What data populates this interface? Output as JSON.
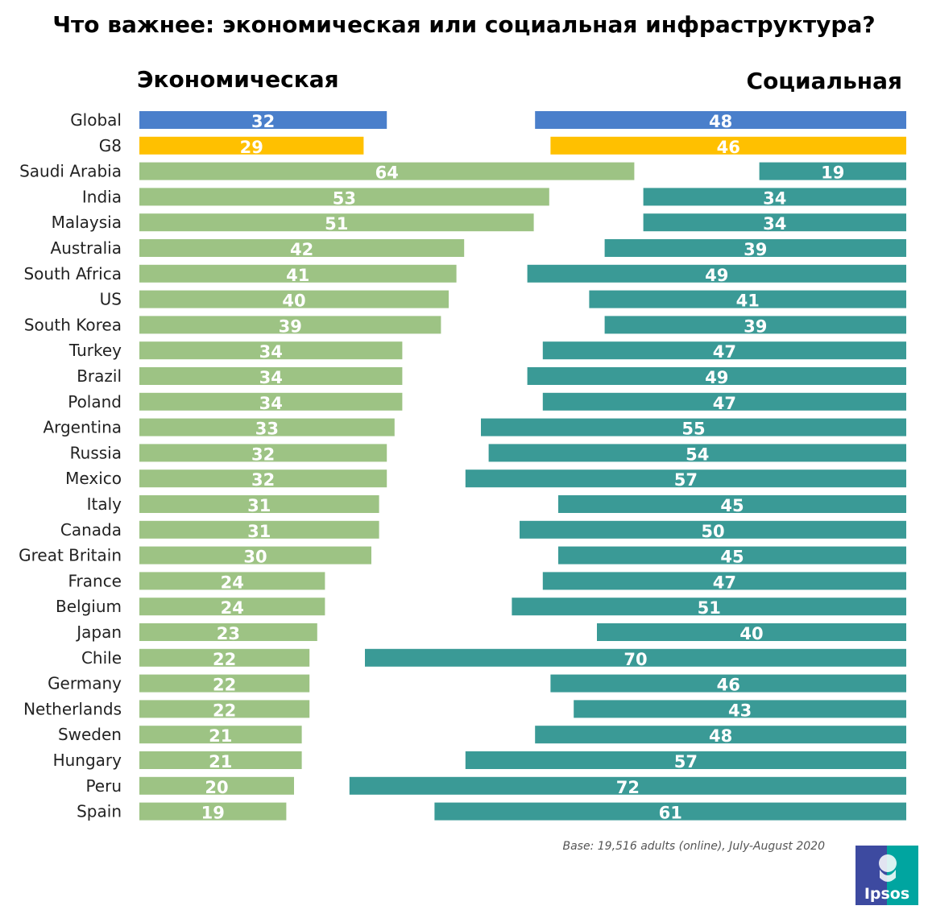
{
  "chart_data": {
    "type": "bar",
    "title": "Что важнее: экономическая или социальная инфраструктура?",
    "left_header": "Экономическая",
    "right_header": "Социальная",
    "categories": [
      "Global",
      "G8",
      "Saudi Arabia",
      "India",
      "Malaysia",
      "Australia",
      "South Africa",
      "US",
      "South Korea",
      "Turkey",
      "Brazil",
      "Poland",
      "Argentina",
      "Russia",
      "Mexico",
      "Italy",
      "Canada",
      "Great Britain",
      "France",
      "Belgium",
      "Japan",
      "Chile",
      "Germany",
      "Netherlands",
      "Sweden",
      "Hungary",
      "Peru",
      "Spain"
    ],
    "series": [
      {
        "name": "Экономическая",
        "values": [
          32,
          29,
          64,
          53,
          51,
          42,
          41,
          40,
          39,
          34,
          34,
          34,
          33,
          32,
          32,
          31,
          31,
          30,
          24,
          24,
          23,
          22,
          22,
          22,
          21,
          21,
          20,
          19
        ]
      },
      {
        "name": "Социальная",
        "values": [
          48,
          46,
          19,
          34,
          34,
          39,
          49,
          41,
          39,
          47,
          49,
          47,
          55,
          54,
          57,
          45,
          50,
          45,
          47,
          51,
          40,
          70,
          46,
          43,
          48,
          57,
          72,
          61
        ]
      }
    ],
    "colors": {
      "global": "#4a7fcb",
      "g8": "#ffc000",
      "economic": "#9dc384",
      "social": "#3a9a96"
    },
    "footnote": "Base: 19,516 adults (online), July-August 2020"
  },
  "logo": {
    "text": "Ipsos",
    "icon": "ipsos-logo-icon",
    "colors": [
      "#3d4aa0",
      "#00a5a0"
    ]
  }
}
